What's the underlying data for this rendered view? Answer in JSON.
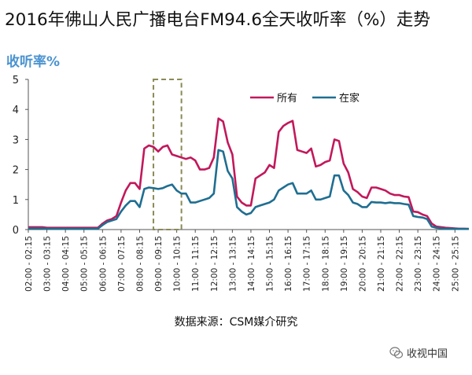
{
  "title": "2016年佛山人民广播电台FM94.6全天收听率（%）走势",
  "source": "数据来源：CSM媒介研究",
  "watermark": "收视中国",
  "colors": {
    "all": "#c2185b",
    "home": "#1f6e91",
    "axis": "#555555",
    "highlight": "#8a8a56"
  },
  "chart_data": {
    "type": "line",
    "ylabel": "收听率%",
    "xlabel": "",
    "ylim": [
      0,
      5
    ],
    "yticks": [
      0,
      1,
      2,
      3,
      4,
      5
    ],
    "legend_position": "top-right",
    "highlight_range": [
      "09:00 - 09:15",
      "10:00 - 10:15"
    ],
    "x_tick_labels": [
      "02:00 - 02:15",
      "03:00 - 03:15",
      "04:00 - 04:15",
      "05:00 - 05:15",
      "06:00 - 06:15",
      "07:00 - 07:15",
      "08:00 - 08:15",
      "09:00 - 09:15",
      "10:00 - 10:15",
      "11:00 - 11:15",
      "12:00 - 12:15",
      "13:00 - 13:15",
      "14:00 - 14:15",
      "15:00 - 15:15",
      "16:00 - 16:15",
      "17:00 - 17:15",
      "18:00 - 18:15",
      "19:00 - 19:15",
      "20:00 - 20:15",
      "21:00 - 21:15",
      "22:00 - 22:15",
      "23:00 - 23:15",
      "24:00 - 24:15",
      "25:00 - 25:15"
    ],
    "series": [
      {
        "name": "所有",
        "values": [
          0.08,
          0.08,
          0.08,
          0.08,
          0.06,
          0.06,
          0.06,
          0.06,
          0.06,
          0.06,
          0.06,
          0.06,
          0.06,
          0.06,
          0.06,
          0.06,
          0.2,
          0.3,
          0.35,
          0.45,
          0.9,
          1.3,
          1.55,
          1.55,
          1.35,
          2.7,
          2.8,
          2.75,
          2.6,
          2.75,
          2.8,
          2.5,
          2.45,
          2.4,
          2.35,
          2.4,
          2.3,
          2.0,
          2.0,
          2.05,
          2.4,
          3.7,
          3.6,
          2.9,
          2.5,
          1.1,
          0.9,
          0.8,
          0.8,
          1.7,
          1.8,
          1.9,
          2.15,
          2.05,
          3.25,
          3.45,
          3.55,
          3.62,
          2.65,
          2.6,
          2.55,
          2.7,
          2.1,
          2.15,
          2.25,
          2.3,
          3.0,
          2.95,
          2.2,
          1.9,
          1.35,
          1.25,
          1.1,
          1.05,
          1.4,
          1.4,
          1.35,
          1.3,
          1.2,
          1.15,
          1.15,
          1.1,
          1.08,
          0.6,
          0.58,
          0.5,
          0.45,
          0.2,
          0.1,
          0.08,
          0.06,
          0.05,
          0.04,
          0.03,
          0.03,
          0.02
        ]
      },
      {
        "name": "在家",
        "values": [
          0.04,
          0.04,
          0.04,
          0.04,
          0.03,
          0.03,
          0.03,
          0.03,
          0.03,
          0.03,
          0.03,
          0.03,
          0.03,
          0.03,
          0.03,
          0.03,
          0.15,
          0.25,
          0.3,
          0.35,
          0.6,
          0.8,
          0.95,
          0.95,
          0.75,
          1.35,
          1.4,
          1.38,
          1.35,
          1.38,
          1.45,
          1.5,
          1.3,
          1.2,
          1.2,
          0.9,
          0.9,
          0.95,
          1.0,
          1.05,
          1.2,
          2.65,
          2.6,
          1.95,
          1.7,
          0.75,
          0.6,
          0.5,
          0.55,
          0.75,
          0.8,
          0.85,
          0.9,
          1.0,
          1.3,
          1.4,
          1.5,
          1.55,
          1.2,
          1.2,
          1.2,
          1.3,
          1.0,
          1.0,
          1.05,
          1.1,
          1.8,
          1.8,
          1.3,
          1.15,
          0.9,
          0.85,
          0.75,
          0.75,
          0.92,
          0.9,
          0.9,
          0.88,
          0.9,
          0.88,
          0.88,
          0.85,
          0.83,
          0.45,
          0.42,
          0.4,
          0.35,
          0.1,
          0.06,
          0.04,
          0.03,
          0.03,
          0.02,
          0.02,
          0.02,
          0.02
        ]
      }
    ]
  }
}
